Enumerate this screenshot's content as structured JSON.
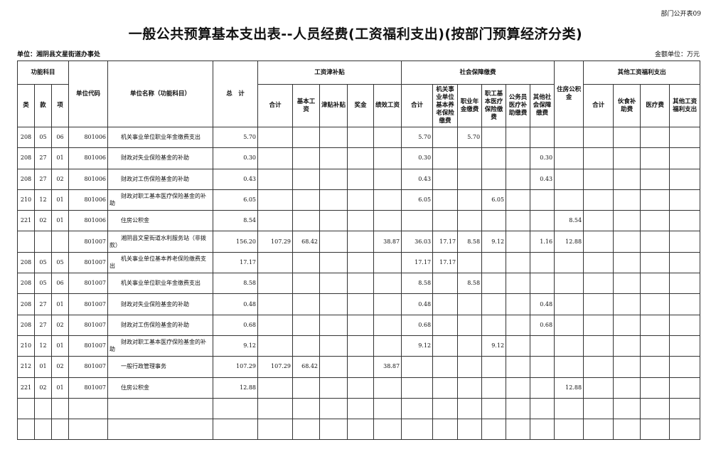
{
  "form_no": "部门公开表09",
  "title": "一般公共预算基本支出表--人员经费(工资福利支出)(按部门预算经济分类)",
  "unit_label": "单位：湘阴县文星街道办事处",
  "amount_unit": "金额单位：万元",
  "header": {
    "functional_subject": "功能科目",
    "lei": "类",
    "kuan": "款",
    "xiang": "项",
    "unit_code": "单位代码",
    "unit_name": "单位名称（功能科目）",
    "total": "总　计",
    "wage_group": "工资津补贴",
    "wage_cols": [
      "合计",
      "基本工资",
      "津贴补贴",
      "奖金",
      "绩效工资"
    ],
    "social_group": "社会保障缴费",
    "social_cols": [
      "合计",
      "机关事业单位基本养老保险缴费",
      "职业年金缴费",
      "职工基本医疗保险缴费",
      "公务员医疗补助缴费",
      "其他社会保障缴费"
    ],
    "housing": "住房公积金",
    "other_group": "其他工资福利支出",
    "other_cols": [
      "合计",
      "伙食补助费",
      "医疗费",
      "其他工资福利支出"
    ]
  },
  "rows": [
    [
      "208",
      "05",
      "06",
      "801006",
      "机关事业单位职业年金缴费支出",
      "5.70",
      "",
      "",
      "",
      "",
      "",
      "5.70",
      "",
      "5.70",
      "",
      "",
      "",
      "",
      "",
      "",
      "",
      ""
    ],
    [
      "208",
      "27",
      "01",
      "801006",
      "财政对失业保险基金的补助",
      "0.30",
      "",
      "",
      "",
      "",
      "",
      "0.30",
      "",
      "",
      "",
      "",
      "0.30",
      "",
      "",
      "",
      "",
      ""
    ],
    [
      "208",
      "27",
      "02",
      "801006",
      "财政对工伤保险基金的补助",
      "0.43",
      "",
      "",
      "",
      "",
      "",
      "0.43",
      "",
      "",
      "",
      "",
      "0.43",
      "",
      "",
      "",
      "",
      ""
    ],
    [
      "210",
      "12",
      "01",
      "801006",
      "财政对职工基本医疗保险基金的补助",
      "6.05",
      "",
      "",
      "",
      "",
      "",
      "6.05",
      "",
      "",
      "6.05",
      "",
      "",
      "",
      "",
      "",
      "",
      ""
    ],
    [
      "221",
      "02",
      "01",
      "801006",
      "住房公积金",
      "8.54",
      "",
      "",
      "",
      "",
      "",
      "",
      "",
      "",
      "",
      "",
      "",
      "8.54",
      "",
      "",
      "",
      ""
    ],
    [
      "",
      "",
      "",
      "801007",
      "湘阴县文星街道水利服务站（非拨款）",
      "156.20",
      "107.29",
      "68.42",
      "",
      "",
      "38.87",
      "36.03",
      "17.17",
      "8.58",
      "9.12",
      "",
      "1.16",
      "12.88",
      "",
      "",
      "",
      ""
    ],
    [
      "208",
      "05",
      "05",
      "801007",
      "机关事业单位基本养老保险缴费支出",
      "17.17",
      "",
      "",
      "",
      "",
      "",
      "17.17",
      "17.17",
      "",
      "",
      "",
      "",
      "",
      "",
      "",
      "",
      ""
    ],
    [
      "208",
      "05",
      "06",
      "801007",
      "机关事业单位职业年金缴费支出",
      "8.58",
      "",
      "",
      "",
      "",
      "",
      "8.58",
      "",
      "8.58",
      "",
      "",
      "",
      "",
      "",
      "",
      "",
      ""
    ],
    [
      "208",
      "27",
      "01",
      "801007",
      "财政对失业保险基金的补助",
      "0.48",
      "",
      "",
      "",
      "",
      "",
      "0.48",
      "",
      "",
      "",
      "",
      "0.48",
      "",
      "",
      "",
      "",
      ""
    ],
    [
      "208",
      "27",
      "02",
      "801007",
      "财政对工伤保险基金的补助",
      "0.68",
      "",
      "",
      "",
      "",
      "",
      "0.68",
      "",
      "",
      "",
      "",
      "0.68",
      "",
      "",
      "",
      "",
      ""
    ],
    [
      "210",
      "12",
      "01",
      "801007",
      "财政对职工基本医疗保险基金的补助",
      "9.12",
      "",
      "",
      "",
      "",
      "",
      "9.12",
      "",
      "",
      "9.12",
      "",
      "",
      "",
      "",
      "",
      "",
      ""
    ],
    [
      "212",
      "01",
      "02",
      "801007",
      "一般行政管理事务",
      "107.29",
      "107.29",
      "68.42",
      "",
      "",
      "38.87",
      "",
      "",
      "",
      "",
      "",
      "",
      "",
      "",
      "",
      "",
      ""
    ],
    [
      "221",
      "02",
      "01",
      "801007",
      "住房公积金",
      "12.88",
      "",
      "",
      "",
      "",
      "",
      "",
      "",
      "",
      "",
      "",
      "",
      "12.88",
      "",
      "",
      "",
      ""
    ],
    [
      "",
      "",
      "",
      "",
      "",
      "",
      "",
      "",
      "",
      "",
      "",
      "",
      "",
      "",
      "",
      "",
      "",
      "",
      "",
      "",
      "",
      ""
    ],
    [
      "",
      "",
      "",
      "",
      "",
      "",
      "",
      "",
      "",
      "",
      "",
      "",
      "",
      "",
      "",
      "",
      "",
      "",
      "",
      "",
      "",
      ""
    ]
  ]
}
